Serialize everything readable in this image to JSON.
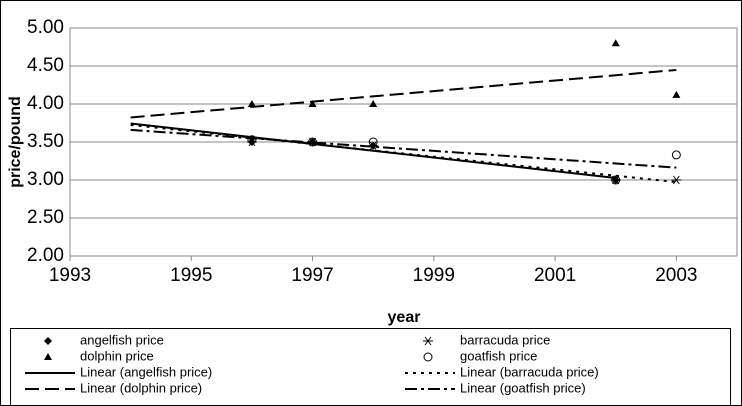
{
  "chart_data": {
    "type": "scatter",
    "x_label": "year",
    "y_label": "price/pound",
    "xlim": [
      1993,
      2004
    ],
    "xticks": [
      1993,
      1995,
      1997,
      1999,
      2001,
      2003
    ],
    "ylim": [
      2,
      5
    ],
    "yticks": [
      {
        "value": 2,
        "label": "2.00"
      },
      {
        "value": 2.5,
        "label": "2.50"
      },
      {
        "value": 3,
        "label": "3.00"
      },
      {
        "value": 3.5,
        "label": "3.50"
      },
      {
        "value": 4,
        "label": "4.00"
      },
      {
        "value": 4.5,
        "label": "4.50"
      },
      {
        "value": 5,
        "label": "5.00"
      }
    ],
    "grid": true,
    "legend": "bottom",
    "trend_start": 1994,
    "series": [
      {
        "name": "angelfish price",
        "trend_name": "Linear (angelfish price)",
        "marker": "diamond",
        "trend_dash": "none",
        "color": "#000",
        "x": [
          1996,
          1997,
          1998,
          2002
        ],
        "values": [
          3.5,
          3.5,
          3.45,
          3.0
        ]
      },
      {
        "name": "barracuda price",
        "trend_name": "Linear (barracuda price)",
        "marker": "asterisk",
        "trend_dash": "3 5",
        "color": "#000",
        "x": [
          1996,
          1997,
          1998,
          2002,
          2003
        ],
        "values": [
          3.5,
          3.5,
          3.45,
          3.0,
          3.0
        ]
      },
      {
        "name": "dolphin price",
        "trend_name": "Linear (dolphin price)",
        "marker": "triangle",
        "trend_dash": "14 6",
        "color": "#000",
        "x": [
          1996,
          1997,
          1998,
          2002,
          2003
        ],
        "values": [
          4.0,
          4.0,
          4.0,
          4.8,
          4.12
        ]
      },
      {
        "name": "goatfish price",
        "trend_name": "Linear (goatfish price)",
        "marker": "circle",
        "trend_dash": "12 4 3 4",
        "color": "#000",
        "x": [
          1996,
          1997,
          1998,
          2002,
          2003
        ],
        "values": [
          3.53,
          3.5,
          3.5,
          3.0,
          3.33
        ]
      }
    ]
  }
}
